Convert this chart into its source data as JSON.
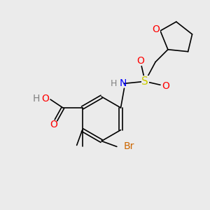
{
  "background_color": "#ebebeb",
  "bond_color": "#000000",
  "atom_colors": {
    "O": "#ff0000",
    "N": "#0000ff",
    "S": "#cccc00",
    "Br": "#cc6600",
    "H": "#808080",
    "C": "#000000"
  },
  "font_size": 9,
  "bond_width": 1.2
}
